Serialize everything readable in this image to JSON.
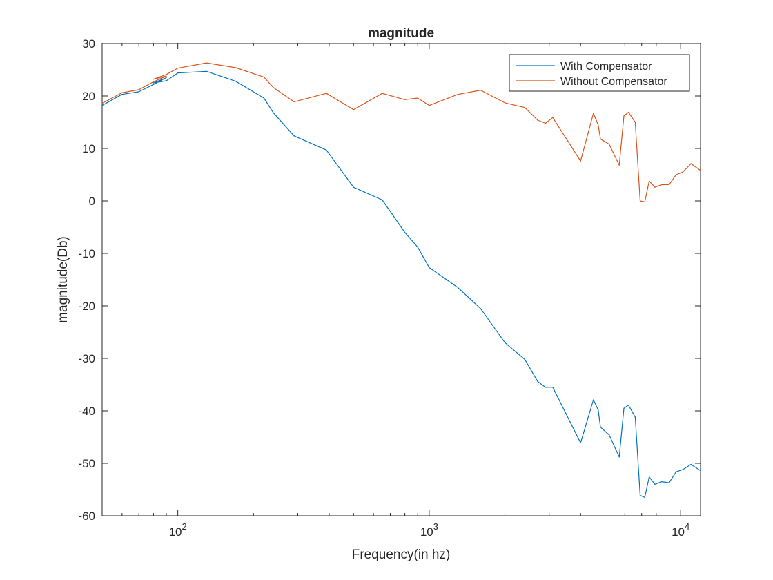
{
  "chart_data": {
    "type": "line",
    "title": "magnitude",
    "xlabel": "Frequency(in hz)",
    "ylabel": "magnitude(Db)",
    "x_scale": "log",
    "xlim": [
      50,
      12000
    ],
    "ylim": [
      -60,
      30
    ],
    "x_ticks": [
      {
        "value": 100,
        "base": "10",
        "exp": "2"
      },
      {
        "value": 1000,
        "base": "10",
        "exp": "3"
      },
      {
        "value": 10000,
        "base": "10",
        "exp": "4"
      }
    ],
    "y_ticks": [
      30,
      20,
      10,
      0,
      -10,
      -20,
      -30,
      -40,
      -50,
      -60
    ],
    "y_tick_labels": [
      "30",
      "20",
      "10",
      "0",
      "-10",
      "-20",
      "-30",
      "-40",
      "-50",
      "-60"
    ],
    "grid": false,
    "legend_position": "top-right",
    "series": [
      {
        "name": "With Compensator",
        "color": "#0072BD",
        "x": [
          50,
          60,
          70,
          80,
          90,
          80,
          90,
          100,
          130,
          170,
          220,
          240,
          290,
          390,
          500,
          650,
          800,
          900,
          1000,
          1300,
          1600,
          2000,
          2400,
          2700,
          2900,
          3100,
          4000,
          4500,
          4700,
          4800,
          5200,
          5700,
          5950,
          6200,
          6600,
          6900,
          7200,
          7500,
          7900,
          8400,
          9000,
          9600,
          10200,
          11000,
          12000
        ],
        "y": [
          18.2,
          20.3,
          20.8,
          22.2,
          23.5,
          22.5,
          22.9,
          24.4,
          24.7,
          22.8,
          19.6,
          16.8,
          12.4,
          9.7,
          2.6,
          0.2,
          -6,
          -8.8,
          -12.7,
          -16.5,
          -20.5,
          -27,
          -30.2,
          -34.4,
          -35.5,
          -35.5,
          -46.1,
          -37.9,
          -39.8,
          -43.1,
          -44.6,
          -48.8,
          -39.5,
          -38.9,
          -41.2,
          -56.1,
          -56.5,
          -52.6,
          -54,
          -53.5,
          -53.7,
          -51.6,
          -51.2,
          -50.2,
          -51.4
        ]
      },
      {
        "name": "Without Compensator",
        "color": "#D95319",
        "x": [
          50,
          60,
          70,
          80,
          90,
          80,
          90,
          100,
          130,
          170,
          220,
          240,
          290,
          390,
          500,
          650,
          800,
          900,
          1000,
          1300,
          1600,
          2000,
          2400,
          2700,
          2900,
          3100,
          4000,
          4500,
          4700,
          4800,
          5200,
          5700,
          5950,
          6200,
          6600,
          6900,
          7200,
          7500,
          7900,
          8400,
          9000,
          9600,
          10200,
          11000,
          12000
        ],
        "y": [
          18.6,
          20.6,
          21.2,
          22.7,
          23.8,
          23.2,
          24.1,
          25.3,
          26.3,
          25.4,
          23.6,
          21.6,
          18.9,
          20.5,
          17.4,
          20.5,
          19.3,
          19.6,
          18.2,
          20.3,
          21.1,
          18.7,
          17.8,
          15.4,
          14.8,
          15.9,
          7.6,
          16.7,
          14.5,
          11.8,
          10.8,
          6.8,
          16.2,
          16.9,
          15,
          0,
          -0.2,
          3.8,
          2.6,
          3.1,
          3.1,
          5,
          5.5,
          7.1,
          5.8
        ]
      }
    ]
  }
}
